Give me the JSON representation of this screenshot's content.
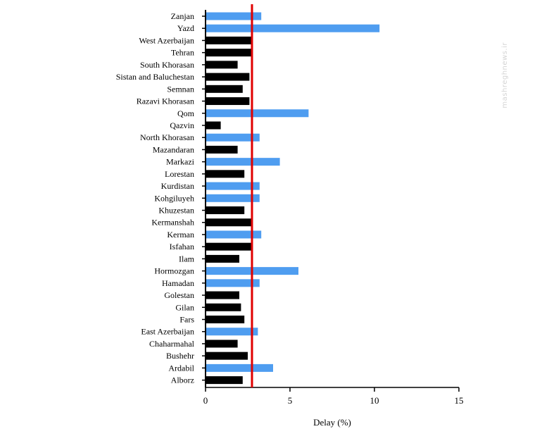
{
  "chart_data": {
    "type": "bar",
    "orientation": "horizontal",
    "xlabel": "Delay (%)",
    "xlim": [
      0,
      15
    ],
    "xticks": [
      0,
      5,
      10,
      15
    ],
    "reference_line": {
      "value": 2.75,
      "color": "#e00000"
    },
    "colors": {
      "above": "#4f9df0",
      "below": "#000000"
    },
    "categories": [
      "Zanjan",
      "Yazd",
      "West Azerbaijan",
      "Tehran",
      "South Khorasan",
      "Sistan and Baluchestan",
      "Semnan",
      "Razavi Khorasan",
      "Qom",
      "Qazvin",
      "North Khorasan",
      "Mazandaran",
      "Markazi",
      "Lorestan",
      "Kurdistan",
      "Kohgiluyeh",
      "Khuzestan",
      "Kermanshah",
      "Kerman",
      "Isfahan",
      "Ilam",
      "Hormozgan",
      "Hamadan",
      "Golestan",
      "Gilan",
      "Fars",
      "East Azerbaijan",
      "Chaharmahal",
      "Bushehr",
      "Ardabil",
      "Alborz"
    ],
    "values": [
      3.3,
      10.3,
      2.7,
      2.7,
      1.9,
      2.6,
      2.2,
      2.6,
      6.1,
      0.9,
      3.2,
      1.9,
      4.4,
      2.3,
      3.2,
      3.2,
      2.3,
      2.7,
      3.3,
      2.7,
      2.0,
      5.5,
      3.2,
      2.0,
      2.1,
      2.3,
      3.1,
      1.9,
      2.5,
      4.0,
      2.2
    ],
    "bar_colors": [
      "#4f9df0",
      "#4f9df0",
      "#000000",
      "#000000",
      "#000000",
      "#000000",
      "#000000",
      "#000000",
      "#4f9df0",
      "#000000",
      "#4f9df0",
      "#000000",
      "#4f9df0",
      "#000000",
      "#4f9df0",
      "#4f9df0",
      "#000000",
      "#000000",
      "#4f9df0",
      "#000000",
      "#000000",
      "#4f9df0",
      "#4f9df0",
      "#000000",
      "#000000",
      "#000000",
      "#4f9df0",
      "#000000",
      "#000000",
      "#4f9df0",
      "#000000"
    ]
  },
  "watermark": {
    "text": "mashreghnews.ir"
  }
}
